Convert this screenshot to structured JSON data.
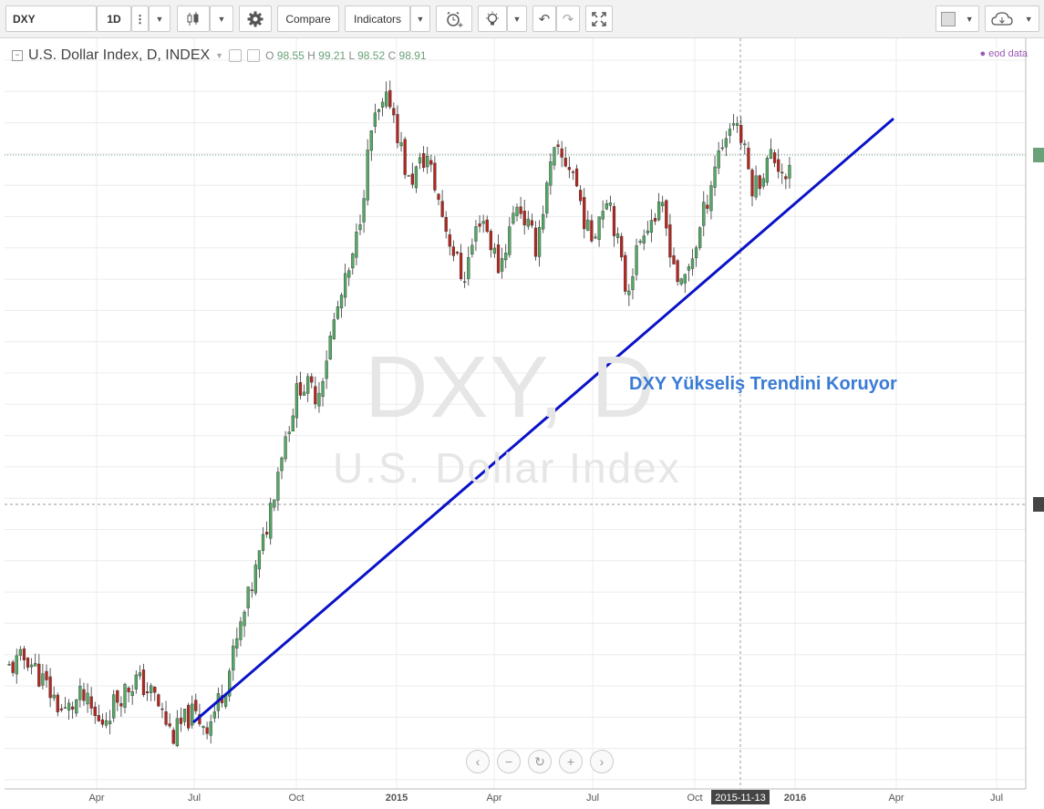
{
  "toolbar": {
    "symbol": "DXY",
    "interval": "1D",
    "compare_label": "Compare",
    "indicators_label": "Indicators"
  },
  "legend": {
    "title": "U.S. Dollar Index, D, INDEX",
    "o_label": "O",
    "o_value": "98.55",
    "h_label": "H",
    "h_value": "99.21",
    "l_label": "L",
    "l_value": "98.52",
    "c_label": "C",
    "c_value": "98.91",
    "eod_label": "eod data"
  },
  "watermark": {
    "symbol": "DXY, D",
    "name": "U.S. Dollar Index"
  },
  "annotation": {
    "text": "DXY Yükseliş Trendini Koruyor"
  },
  "time_axis": {
    "labels": [
      "Apr",
      "Jul",
      "Oct",
      "2015",
      "Apr",
      "Jul",
      "Oct",
      "2016",
      "Apr",
      "Jul"
    ],
    "highlight": "2015-11-13"
  },
  "colors": {
    "up": "#53a964",
    "down": "#b5261e",
    "trendline": "#0a12c8",
    "annotation": "#3a7bd5"
  },
  "chart_data": {
    "type": "candlestick",
    "symbol": "DXY",
    "interval": "D",
    "last_bar": {
      "open": 98.55,
      "high": 99.21,
      "low": 98.52,
      "close": 98.91
    },
    "x_labels": [
      "Apr",
      "Jul",
      "Oct",
      "2015",
      "Apr",
      "Jul",
      "Oct",
      "2016",
      "Apr",
      "Jul"
    ],
    "path_key_points": [
      0.0,
      0.02,
      -0.03,
      -0.08,
      -0.05,
      -0.1,
      -0.05,
      -0.02,
      -0.05,
      -0.12,
      -0.08,
      -0.1,
      -0.02,
      0.1,
      0.22,
      0.38,
      0.5,
      0.48,
      0.62,
      0.72,
      0.95,
      1.0,
      0.85,
      0.9,
      0.78,
      0.68,
      0.8,
      0.7,
      0.82,
      0.74,
      0.9,
      0.88,
      0.75,
      0.84,
      0.66,
      0.78,
      0.8,
      0.66,
      0.76,
      0.9,
      0.97,
      0.84,
      0.9,
      0.86
    ],
    "trendline": {
      "from": "Jul 2014",
      "to": "Apr 2016"
    },
    "grid": true,
    "legend": "top-left"
  }
}
